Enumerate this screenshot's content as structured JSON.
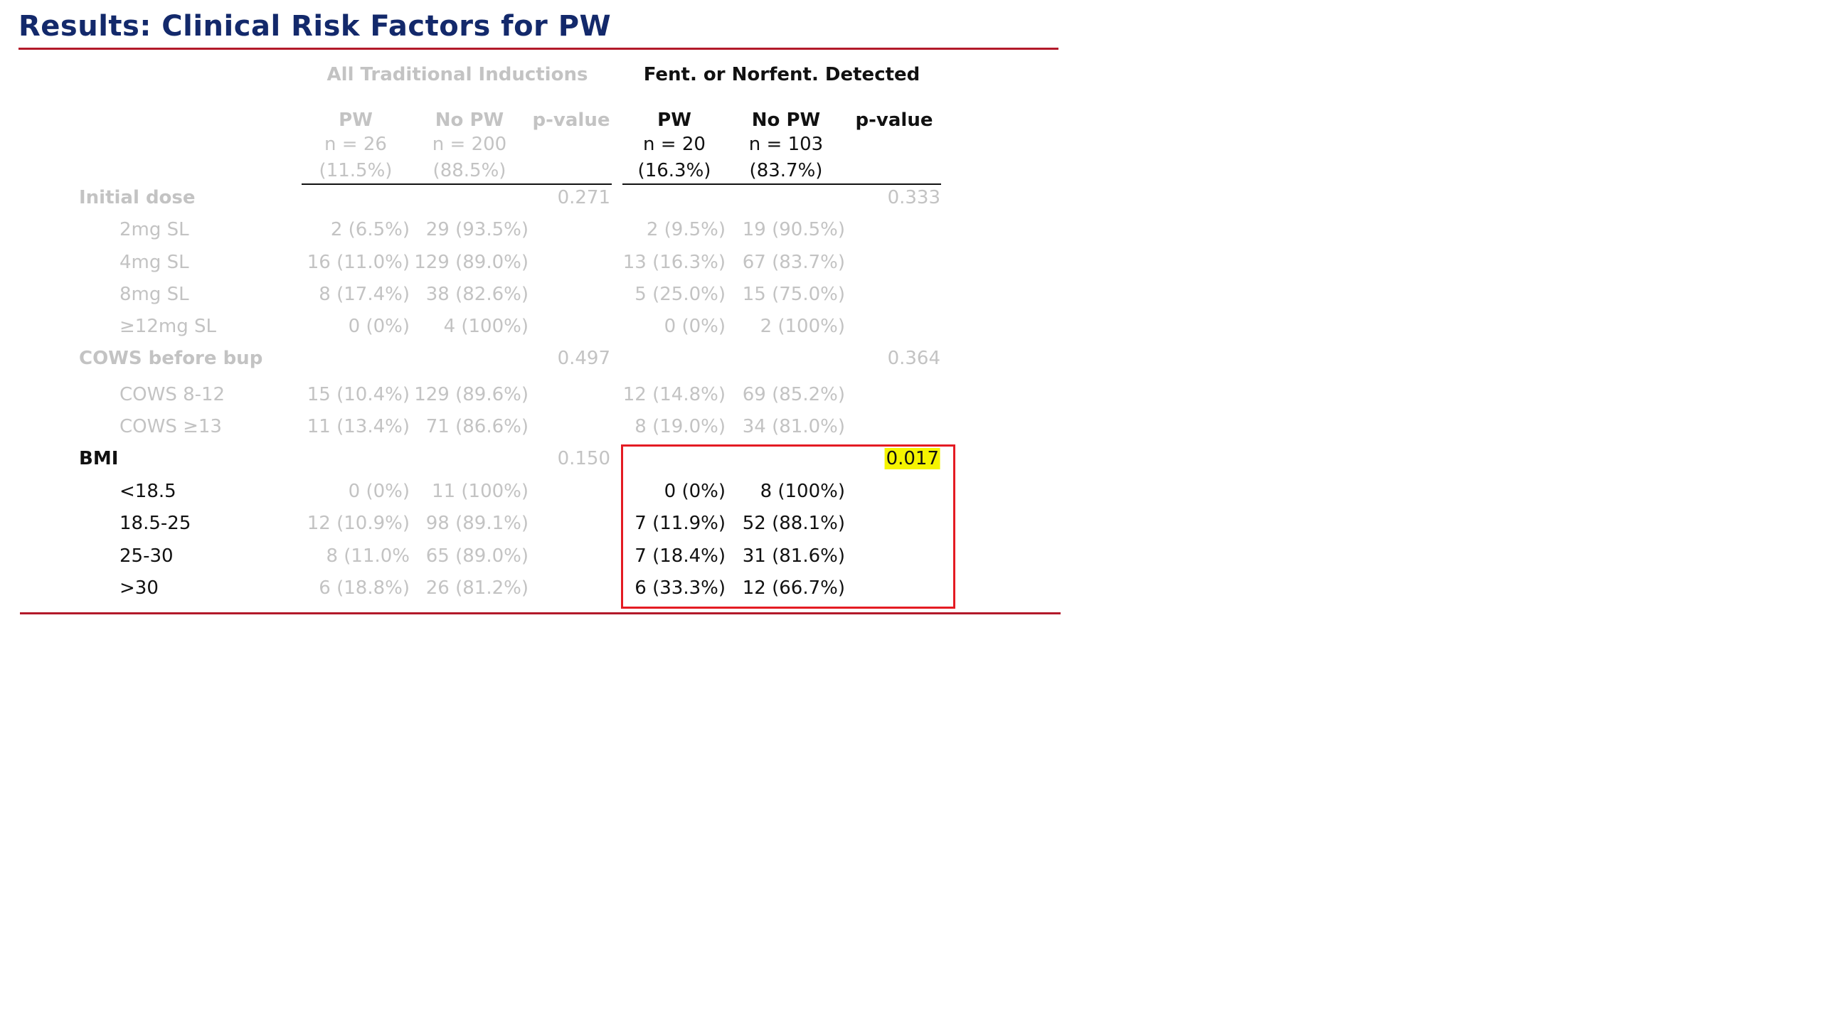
{
  "title": "Results: Clinical Risk Factors for PW",
  "groups": {
    "all": "All Traditional Inductions",
    "fent": "Fent. or Norfent. Detected"
  },
  "columns": {
    "all": {
      "pw": {
        "label": "PW",
        "n": "n = 26",
        "pct": "(11.5%)"
      },
      "nopw": {
        "label": "No PW",
        "n": "n = 200",
        "pct": "(88.5%)"
      },
      "pvalue": "p-value"
    },
    "fent": {
      "pw": {
        "label": "PW",
        "n": "n = 20",
        "pct": "(16.3%)"
      },
      "nopw": {
        "label": "No PW",
        "n": "n = 103",
        "pct": "(83.7%)"
      },
      "pvalue": "p-value"
    }
  },
  "sections": [
    {
      "label": "Initial dose",
      "p_all": "0.271",
      "p_fent": "0.333",
      "rows": [
        {
          "label": "2mg SL",
          "a_pw": "2 (6.5%)",
          "a_nopw": "29 (93.5%)",
          "f_pw": "2 (9.5%)",
          "f_nopw": "19 (90.5%)"
        },
        {
          "label": "4mg SL",
          "a_pw": "16 (11.0%)",
          "a_nopw": "129 (89.0%)",
          "f_pw": "13 (16.3%)",
          "f_nopw": "67 (83.7%)"
        },
        {
          "label": "8mg SL",
          "a_pw": "8 (17.4%)",
          "a_nopw": "38 (82.6%)",
          "f_pw": "5 (25.0%)",
          "f_nopw": "15 (75.0%)"
        },
        {
          "label": "≥12mg SL",
          "a_pw": "0 (0%)",
          "a_nopw": "4 (100%)",
          "f_pw": "0 (0%)",
          "f_nopw": "2 (100%)"
        }
      ]
    },
    {
      "label": "COWS before bup",
      "p_all": "0.497",
      "p_fent": "0.364",
      "rows": [
        {
          "label": "COWS 8-12",
          "a_pw": "15 (10.4%)",
          "a_nopw": "129 (89.6%)",
          "f_pw": "12 (14.8%)",
          "f_nopw": "69 (85.2%)"
        },
        {
          "label": "COWS ≥13",
          "a_pw": "11 (13.4%)",
          "a_nopw": "71 (86.6%)",
          "f_pw": "8 (19.0%)",
          "f_nopw": "34 (81.0%)"
        }
      ]
    },
    {
      "label": "BMI",
      "p_all": "0.150",
      "p_fent": "0.017",
      "rows": [
        {
          "label": "<18.5",
          "a_pw": "0 (0%)",
          "a_nopw": "11 (100%)",
          "f_pw": "0 (0%)",
          "f_nopw": "8 (100%)"
        },
        {
          "label": "18.5-25",
          "a_pw": "12 (10.9%)",
          "a_nopw": "98 (89.1%)",
          "f_pw": "7 (11.9%)",
          "f_nopw": "52 (88.1%)"
        },
        {
          "label": "25-30",
          "a_pw": "8 (11.0%",
          "a_nopw": "65 (89.0%)",
          "f_pw": "7 (18.4%)",
          "f_nopw": "31 (81.6%)"
        },
        {
          "label": ">30",
          "a_pw": "6 (18.8%)",
          "a_nopw": "26 (81.2%)",
          "f_pw": "6 (33.3%)",
          "f_nopw": "12 (66.7%)"
        }
      ]
    }
  ]
}
